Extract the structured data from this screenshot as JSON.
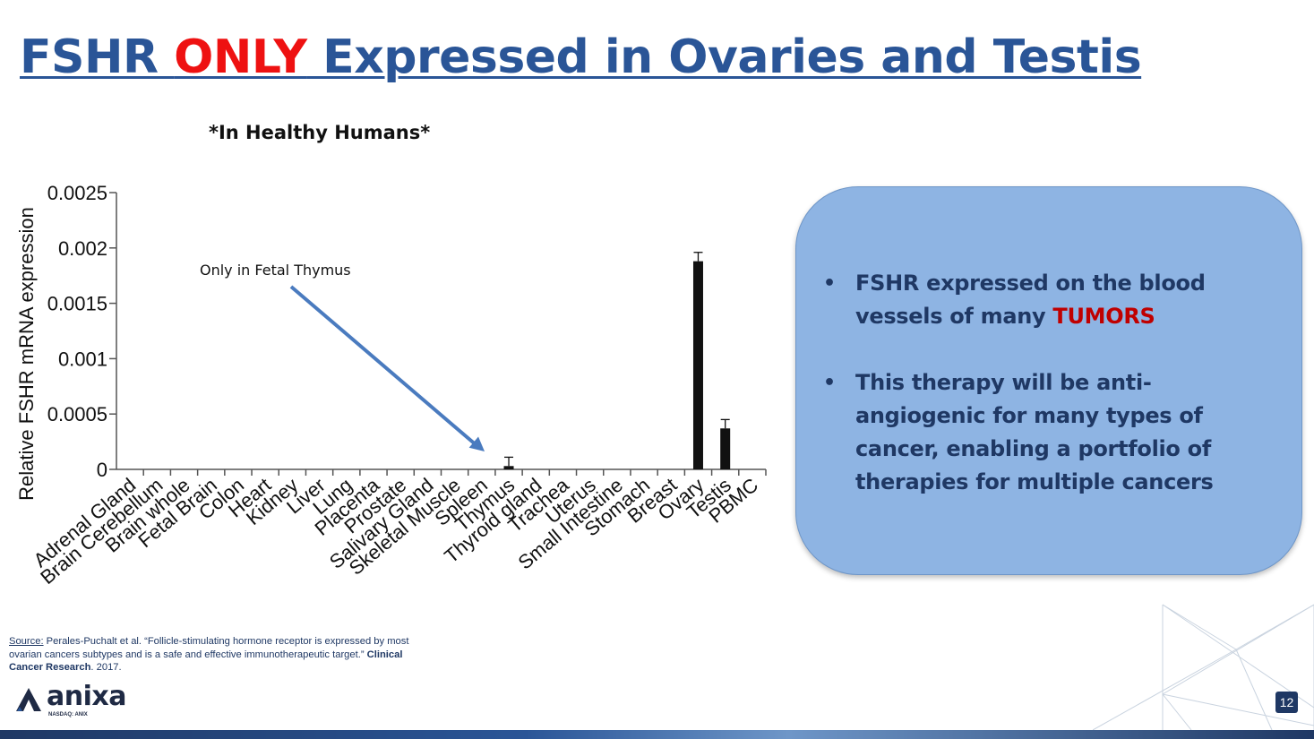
{
  "slide": {
    "title_part1": "FSHR ",
    "title_highlight": "ONLY",
    "title_part2": " Expressed in Ovaries and Testis",
    "subtitle": "*In Healthy Humans*",
    "page_number": "12"
  },
  "infobox": {
    "bullet1_text": "FSHR expressed on the blood vessels of many ",
    "bullet1_highlight": "TUMORS",
    "bullet2_text": "This therapy will be anti-angiogenic for many types of cancer, enabling a portfolio of therapies for multiple cancers"
  },
  "source": {
    "label": "Source:",
    "text": " Perales-Puchalt et al.  “Follicle-stimulating hormone receptor is expressed by most ovarian cancers subtypes and is a safe and effective immunotherapeutic target.”  ",
    "journal": "Clinical Cancer Research",
    "year": ". 2017."
  },
  "logo": {
    "name": "anixa",
    "ticker": "NASDAQ: ANIX"
  },
  "colors": {
    "title_blue": "#2a5597",
    "highlight_red": "#ee1111",
    "tumors_red": "#c00000",
    "box_fill": "#8eb4e3",
    "bar": "#111111",
    "annotation_arrow": "#4a7bbf"
  },
  "chart_data": {
    "type": "bar",
    "title": "",
    "xlabel": "",
    "ylabel": "Relative FSHR mRNA expression",
    "ylim": [
      0,
      0.0025
    ],
    "yticks": [
      0,
      0.0005,
      0.001,
      0.0015,
      0.002,
      0.0025
    ],
    "ytick_labels": [
      "0",
      "0.0005",
      "0.001",
      "0.0015",
      "0.002",
      "0.0025"
    ],
    "categories": [
      "Adrenal Gland",
      "Brain Cerebellum",
      "Brain whole",
      "Fetal Brain",
      "Colon",
      "Heart",
      "Kidney",
      "Liver",
      "Lung",
      "Placenta",
      "Prostate",
      "Salivary Gland",
      "Skeletal Muscle",
      "Spleen",
      "Thymus",
      "Thyroid gland",
      "Trachea",
      "Uterus",
      "Small Intestine",
      "Stomach",
      "Breast",
      "Ovary",
      "Testis",
      "PBMC"
    ],
    "values": [
      0,
      0,
      0,
      0,
      0,
      0,
      0,
      0,
      0,
      0,
      0,
      0,
      0,
      0,
      3e-05,
      0,
      0,
      0,
      0,
      0,
      0,
      0.00188,
      0.00037,
      0
    ],
    "errors": [
      0,
      0,
      0,
      0,
      0,
      0,
      0,
      0,
      0,
      0,
      0,
      0,
      0,
      0,
      8e-05,
      0,
      0,
      0,
      0,
      0,
      0,
      8e-05,
      8e-05,
      0
    ],
    "grid": false,
    "legend": "none",
    "annotations": [
      {
        "text": "Only in Fetal Thymus",
        "target_category": "Thymus"
      }
    ]
  }
}
